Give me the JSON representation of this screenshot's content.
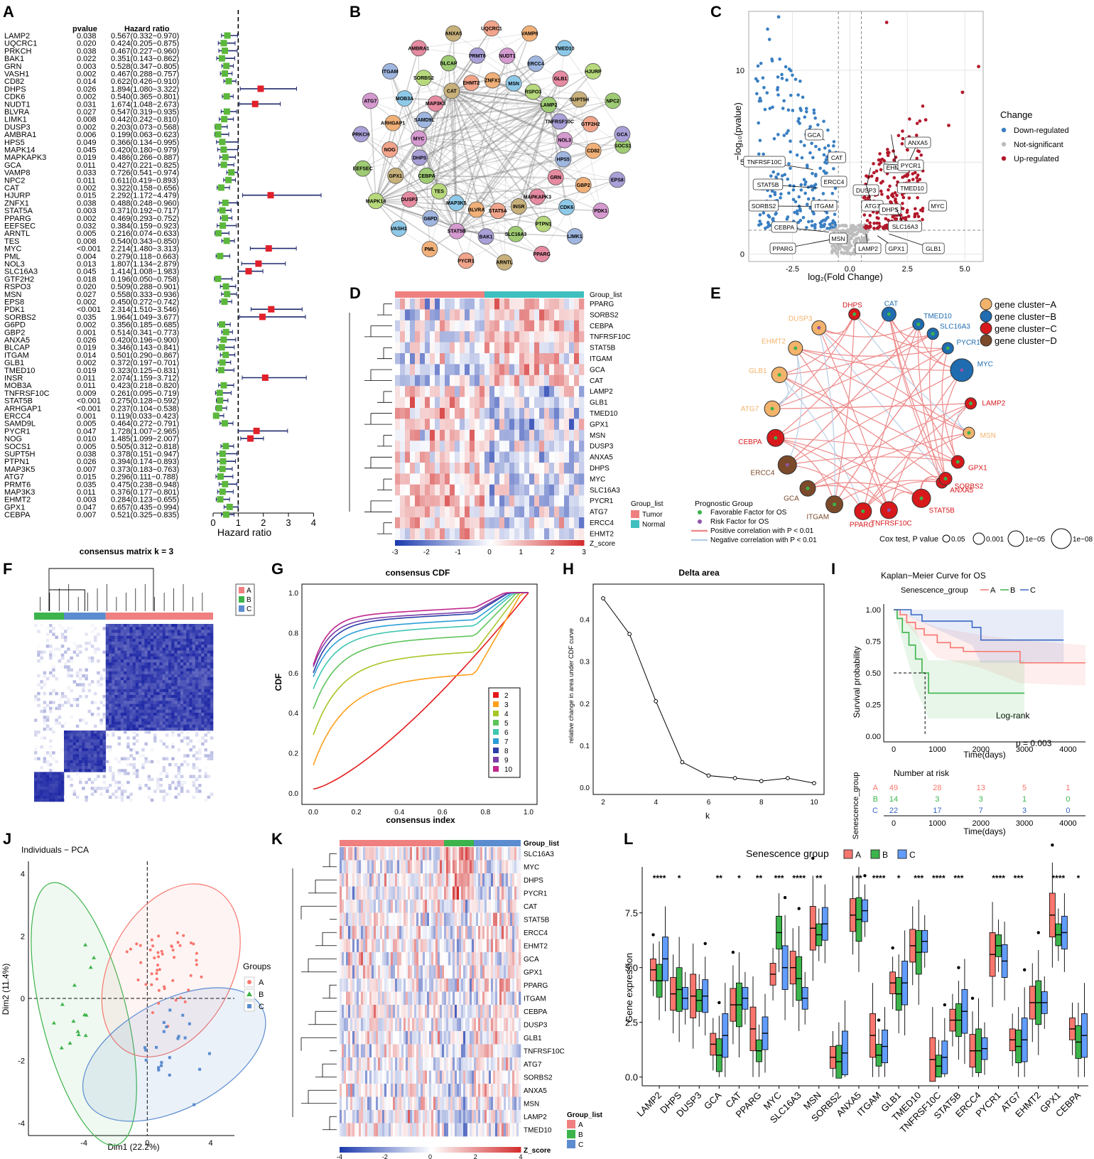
{
  "panel_letters": [
    "A",
    "B",
    "C",
    "D",
    "E",
    "F",
    "G",
    "H",
    "I",
    "J",
    "K",
    "L"
  ],
  "chart_data": [
    {
      "panel": "A",
      "type": "forest",
      "col_pvalue": "pvalue",
      "col_hr": "Hazard ratio",
      "xlabel": "Hazard ratio",
      "xticks": [
        "0",
        "1",
        "2",
        "3",
        "4"
      ],
      "xlim": [
        0,
        4.3
      ],
      "ref_line": 1,
      "genes": [
        "LAMP2",
        "UQCRC1",
        "PRKCH",
        "BAK1",
        "GRN",
        "VASH1",
        "CD82",
        "DHPS",
        "CDK6",
        "NUDT1",
        "BLVRA",
        "LIMK1",
        "DUSP3",
        "AMBRA1",
        "HPS5",
        "MAPK14",
        "MAPKAPK3",
        "GCA",
        "VAMP8",
        "NPC2",
        "CAT",
        "HJURP",
        "ZNFX1",
        "STAT5A",
        "PPARG",
        "EEFSEC",
        "ARNTL",
        "TES",
        "MYC",
        "PML",
        "NOL3",
        "SLC16A3",
        "GTF2H2",
        "RSPO3",
        "MSN",
        "EPS8",
        "PDK1",
        "SORBS2",
        "G6PD",
        "GBP2",
        "ANXA5",
        "BLCAP",
        "ITGAM",
        "GLB1",
        "TMED10",
        "INSR",
        "MOB3A",
        "TNFRSF10C",
        "STAT5B",
        "ARHGAP1",
        "ERCC4",
        "SAMD9L",
        "PYCR1",
        "NOG",
        "SOCS1",
        "SUPT5H",
        "PTPN1",
        "MAP3K5",
        "ATG7",
        "PRMT6",
        "MAP3K3",
        "EHMT2",
        "GPX1",
        "CEBPA"
      ],
      "pvalues": [
        "0.038",
        "0.020",
        "0.038",
        "0.022",
        "0.003",
        "0.002",
        "0.014",
        "0.026",
        "0.002",
        "0.031",
        "0.027",
        "0.008",
        "0.002",
        "0.006",
        "0.049",
        "0.045",
        "0.019",
        "0.011",
        "0.033",
        "0.011",
        "0.002",
        "0.015",
        "0.038",
        "0.003",
        "0.002",
        "0.032",
        "0.005",
        "0.008",
        "<0.001",
        "0.004",
        "0.013",
        "0.045",
        "0.018",
        "0.020",
        "0.027",
        "0.002",
        "<0.001",
        "0.035",
        "0.002",
        "0.001",
        "0.026",
        "0.019",
        "0.014",
        "0.002",
        "0.019",
        "0.011",
        "0.011",
        "0.009",
        "<0.001",
        "<0.001",
        "0.001",
        "0.005",
        "0.047",
        "0.010",
        "0.005",
        "0.038",
        "0.026",
        "0.007",
        "0.015",
        "0.035",
        "0.011",
        "0.003",
        "0.047",
        "0.007"
      ],
      "hr_text": [
        "0.567(0.332−0.970)",
        "0.424(0.205−0.875)",
        "0.467(0.227−0.960)",
        "0.351(0.143−0.862)",
        "0.528(0.347−0.805)",
        "0.467(0.288−0.757)",
        "0.622(0.426−0.910)",
        "1.894(1.080−3.322)",
        "0.540(0.365−0.801)",
        "1.674(1.048−2.673)",
        "0.547(0.319−0.935)",
        "0.442(0.242−0.810)",
        "0.203(0.073−0.568)",
        "0.199(0.063−0.623)",
        "0.366(0.134−0.995)",
        "0.420(0.180−0.979)",
        "0.486(0.266−0.887)",
        "0.427(0.221−0.825)",
        "0.726(0.541−0.974)",
        "0.611(0.419−0.893)",
        "0.322(0.158−0.656)",
        "2.292(1.172−4.479)",
        "0.488(0.248−0.960)",
        "0.371(0.192−0.717)",
        "0.469(0.293−0.752)",
        "0.384(0.159−0.923)",
        "0.216(0.074−0.633)",
        "0.540(0.343−0.850)",
        "2.214(1.480−3.313)",
        "0.279(0.118−0.663)",
        "1.807(1.134−2.879)",
        "1.414(1.008−1.983)",
        "0.196(0.050−0.758)",
        "0.509(0.288−0.901)",
        "0.558(0.333−0.936)",
        "0.450(0.272−0.742)",
        "2.314(1.510−3.546)",
        "1.964(1.049−3.677)",
        "0.356(0.185−0.685)",
        "0.514(0.341−0.773)",
        "0.420(0.196−0.900)",
        "0.346(0.143−0.841)",
        "0.501(0.290−0.867)",
        "0.372(0.197−0.701)",
        "0.323(0.125−0.831)",
        "2.074(1.159−3.712)",
        "0.423(0.218−0.820)",
        "0.261(0.095−0.719)",
        "0.275(0.128−0.592)",
        "0.237(0.104−0.538)",
        "0.119(0.033−0.423)",
        "0.464(0.272−0.791)",
        "1.728(1.007−2.965)",
        "1.485(1.099−2.007)",
        "0.505(0.312−0.818)",
        "0.378(0.151−0.947)",
        "0.394(0.174−0.893)",
        "0.373(0.183−0.763)",
        "0.296(0.111−0.788)",
        "0.475(0.238−0.948)",
        "0.376(0.177−0.801)",
        "0.284(0.123−0.655)",
        "0.657(0.435−0.994)",
        "0.521(0.325−0.835)"
      ],
      "hr": [
        0.567,
        0.424,
        0.467,
        0.351,
        0.528,
        0.467,
        0.622,
        1.894,
        0.54,
        1.674,
        0.547,
        0.442,
        0.203,
        0.199,
        0.366,
        0.42,
        0.486,
        0.427,
        0.726,
        0.611,
        0.322,
        2.292,
        0.488,
        0.371,
        0.469,
        0.384,
        0.216,
        0.54,
        2.214,
        0.279,
        1.807,
        1.414,
        0.196,
        0.509,
        0.558,
        0.45,
        2.314,
        1.964,
        0.356,
        0.514,
        0.42,
        0.346,
        0.501,
        0.372,
        0.323,
        2.074,
        0.423,
        0.261,
        0.275,
        0.237,
        0.119,
        0.464,
        1.728,
        1.485,
        0.505,
        0.378,
        0.394,
        0.373,
        0.296,
        0.475,
        0.376,
        0.284,
        0.657,
        0.521
      ],
      "lo": [
        0.332,
        0.205,
        0.227,
        0.143,
        0.347,
        0.288,
        0.426,
        1.08,
        0.365,
        1.048,
        0.319,
        0.242,
        0.073,
        0.063,
        0.134,
        0.18,
        0.266,
        0.221,
        0.541,
        0.419,
        0.158,
        1.172,
        0.248,
        0.192,
        0.293,
        0.159,
        0.074,
        0.343,
        1.48,
        0.118,
        1.134,
        1.008,
        0.05,
        0.288,
        0.333,
        0.272,
        1.51,
        1.049,
        0.185,
        0.341,
        0.196,
        0.143,
        0.29,
        0.197,
        0.125,
        1.159,
        0.218,
        0.095,
        0.128,
        0.104,
        0.033,
        0.272,
        1.007,
        1.099,
        0.312,
        0.151,
        0.174,
        0.183,
        0.111,
        0.238,
        0.177,
        0.123,
        0.435,
        0.325
      ],
      "hi": [
        0.97,
        0.875,
        0.96,
        0.862,
        0.805,
        0.757,
        0.91,
        3.322,
        0.801,
        2.673,
        0.935,
        0.81,
        0.568,
        0.623,
        0.995,
        0.979,
        0.887,
        0.825,
        0.974,
        0.893,
        0.656,
        4.479,
        0.96,
        0.717,
        0.752,
        0.923,
        0.633,
        0.85,
        3.313,
        0.663,
        2.879,
        1.983,
        0.758,
        0.901,
        0.936,
        0.742,
        3.546,
        3.677,
        0.685,
        0.773,
        0.9,
        0.841,
        0.867,
        0.701,
        0.831,
        3.712,
        0.82,
        0.719,
        0.592,
        0.538,
        0.423,
        0.791,
        2.965,
        2.007,
        0.818,
        0.947,
        0.893,
        0.763,
        0.788,
        0.948,
        0.801,
        0.655,
        0.994,
        0.835
      ]
    },
    {
      "panel": "B",
      "type": "network",
      "nodes": [
        "SOCS1",
        "GBP2",
        "MAPKAPK3",
        "EPS8",
        "CDK6",
        "INSR",
        "PDK1",
        "PTPN1",
        "STAT5A",
        "LIMK1",
        "SLC16A3",
        "BLVRA",
        "PPARG",
        "BAK1",
        "MAP3K5",
        "ARNTL",
        "STAT5B",
        "TES",
        "PYCR1",
        "G6PD",
        "CEBPA",
        "PML",
        "DUSP3",
        "DHPS",
        "VASH1",
        "GPX1",
        "MYC",
        "MAPK14",
        "NOG",
        "SAMD9L",
        "EEFSEC",
        "ARHGAP1",
        "MAP3K3",
        "PRKCH",
        "MOB3A",
        "CAT",
        "ATG7",
        "SORBS2",
        "EHMT2",
        "ITGAM",
        "BLCAP",
        "ZNFX1",
        "AMBRA1",
        "PRMT6",
        "MSN",
        "ANXA5",
        "NUDT1",
        "RSPO3",
        "UQCRC1",
        "ERCC4",
        "LAMP2",
        "VAMP8",
        "GLB1",
        "TNFRSF10C",
        "TMED10",
        "SUPT5H",
        "NOL3",
        "HJURP",
        "GTF2H2",
        "HPS5",
        "NPC2",
        "CD82",
        "GRN",
        "GCA"
      ]
    },
    {
      "panel": "C",
      "type": "scatter",
      "xlabel": "log₂(Fold Change)",
      "ylabel": "−log₁₀(pvalue)",
      "xticks": [
        "-2.5",
        "0.0",
        "2.5",
        "5.0"
      ],
      "yticks": [
        "0",
        "5",
        "10"
      ],
      "xlim": [
        -4.4,
        5.8
      ],
      "ylim": [
        -0.4,
        13.2
      ],
      "legend_title": "Change",
      "legend": [
        "Down-regulated",
        "Not-significant",
        "Up-regulated"
      ],
      "colors": [
        "#3a7fc2",
        "#bdbdbd",
        "#b2182b"
      ],
      "labels": [
        "GCA",
        "TNFRSF10C",
        "CAT",
        "STAT5B",
        "ERCC4",
        "SORBS2",
        "ITGAM",
        "DUSP3",
        "ATG7",
        "EHMT2",
        "ANXA5",
        "PYCR1",
        "TMED10",
        "MYC",
        "DHPS",
        "SLC16A3",
        "CEBPA",
        "PPARG",
        "MSN",
        "LAMP2",
        "GPX1",
        "GLB1"
      ]
    },
    {
      "panel": "D",
      "type": "heatmap",
      "group_label": "Group_list",
      "legend_title": "Group_list",
      "legend": [
        "Tumor",
        "Normal"
      ],
      "colorbar_label": "Z_score",
      "colorbar_ticks": [
        "-3",
        "-2",
        "-1",
        "0",
        "1",
        "2",
        "3"
      ],
      "rows": [
        "PPARG",
        "SORBS2",
        "CEBPA",
        "TNFRSF10C",
        "STAT5B",
        "ITGAM",
        "GCA",
        "CAT",
        "LAMP2",
        "GLB1",
        "TMED10",
        "GPX1",
        "MSN",
        "DUSP3",
        "ANXA5",
        "DHPS",
        "MYC",
        "SLC16A3",
        "PYCR1",
        "ATG7",
        "ERCC4",
        "EHMT2"
      ]
    },
    {
      "panel": "E",
      "type": "network",
      "nodes": [
        "DHPS",
        "CAT",
        "TMED10",
        "DUSP3",
        "SLC16A3",
        "EHMT2",
        "PYCR1",
        "GLB1",
        "MYC",
        "ATG7",
        "LAMP2",
        "CEBPA",
        "MSN",
        "ERCC4",
        "GPX1",
        "GCA",
        "ANXA5",
        "ITGAM",
        "TNFRSF10C",
        "PPARG",
        "STAT5B",
        "SORBS2"
      ],
      "cluster_legend": [
        "gene cluster−A",
        "gene cluster−B",
        "gene cluster−C",
        "gene cluster−D"
      ],
      "cluster_colors": [
        "#f3b36b",
        "#1f6cb0",
        "#d7191c",
        "#7b4a2a"
      ],
      "prog_title": "Prognostic Group",
      "prog_items": [
        "Favorable Factor for OS",
        "Risk Factor for OS",
        "Positive correlation with P < 0.01",
        "Negative correlation with P < 0.01"
      ],
      "cox_title": "Cox test, P value",
      "cox_items": [
        "0.05",
        "0.001",
        "1e−05",
        "1e−08"
      ]
    },
    {
      "panel": "F",
      "type": "heatmap",
      "title": "consensus matrix k = 3",
      "legend": [
        "A",
        "B",
        "C"
      ],
      "colors": [
        "#f08080",
        "#3cb44b",
        "#5b8ccf"
      ]
    },
    {
      "panel": "G",
      "type": "line",
      "title": "consensus CDF",
      "xlabel": "consensus index",
      "ylabel": "CDF",
      "xticks": [
        "0.0",
        "0.2",
        "0.4",
        "0.6",
        "0.8",
        "1.0"
      ],
      "yticks": [
        "0.0",
        "0.2",
        "0.4",
        "0.6",
        "0.8",
        "1.0"
      ],
      "legend": [
        "2",
        "3",
        "4",
        "5",
        "6",
        "7",
        "8",
        "9",
        "10"
      ],
      "colors": [
        "#e41a1c",
        "#ff9f1c",
        "#a6c626",
        "#5ec45a",
        "#3fc6b0",
        "#2b9ed6",
        "#2d3fa8",
        "#7a3fa8",
        "#c0268c"
      ]
    },
    {
      "panel": "H",
      "type": "line",
      "title": "Delta area",
      "xlabel": "k",
      "ylabel": "relative change in area under CDF curve",
      "x": [
        2,
        3,
        4,
        5,
        6,
        7,
        8,
        9,
        10
      ],
      "y": [
        0.45,
        0.365,
        0.205,
        0.06,
        0.028,
        0.022,
        0.015,
        0.022,
        0.01
      ],
      "xticks": [
        "2",
        "4",
        "6",
        "8",
        "10"
      ],
      "yticks": [
        "0.0",
        "0.1",
        "0.2",
        "0.3",
        "0.4"
      ]
    },
    {
      "panel": "I",
      "type": "line",
      "title": "Kaplan−Meier Curve for OS",
      "legend_title": "Senescence_group",
      "legend": [
        "A",
        "B",
        "C"
      ],
      "colors": [
        "#f8766d",
        "#3cb44b",
        "#3a66c4"
      ],
      "xlabel": "Time(days)",
      "ylabel": "Survival probability",
      "xticks": [
        "0",
        "1000",
        "2000",
        "3000",
        "4000"
      ],
      "yticks": [
        "0.00",
        "0.25",
        "0.50",
        "0.75",
        "1.00"
      ],
      "logrank": "Log-rank",
      "pvalue": "p = 0.003",
      "risk_title": "Number at risk",
      "risk_ylabel": "Senescence_group",
      "risk_table": [
        [
          "49",
          "28",
          "13",
          "5",
          "1"
        ],
        [
          "14",
          "3",
          "3",
          "1",
          "0"
        ],
        [
          "22",
          "17",
          "7",
          "3",
          "0"
        ]
      ]
    },
    {
      "panel": "J",
      "type": "scatter",
      "title": "Individuals − PCA",
      "xlabel": "Dim1 (22.2%)",
      "ylabel": "Dim2 (11.4%)",
      "xticks": [
        "-4",
        "0",
        "4"
      ],
      "yticks": [
        "-4",
        "-2",
        "0",
        "2",
        "4"
      ],
      "legend_title": "Groups",
      "legend": [
        "A",
        "B",
        "C"
      ],
      "colors": [
        "#f8766d",
        "#3cb44b",
        "#5b8ccf"
      ]
    },
    {
      "panel": "K",
      "type": "heatmap",
      "group_label": "Group_list",
      "legend_title": "Group_list",
      "legend": [
        "A",
        "B",
        "C"
      ],
      "colorbar_label": "Z_score",
      "colorbar_ticks": [
        "-4",
        "-2",
        "0",
        "2",
        "4"
      ],
      "rows": [
        "SLC16A3",
        "MYC",
        "DHPS",
        "PYCR1",
        "CAT",
        "STAT5B",
        "ERCC4",
        "EHMT2",
        "GCA",
        "GPX1",
        "PPARG",
        "ITGAM",
        "CEBPA",
        "DUSP3",
        "GLB1",
        "TNFRSF10C",
        "ATG7",
        "SORBS2",
        "ANXA5",
        "MSN",
        "LAMP2",
        "TMED10"
      ]
    },
    {
      "panel": "L",
      "type": "box",
      "legend_title": "Senescence group",
      "legend": [
        "A",
        "B",
        "C"
      ],
      "colors": [
        "#f8766d",
        "#3cb44b",
        "#619cff"
      ],
      "ylabel": "Gene expression",
      "yticks": [
        "0.0",
        "2.5",
        "5.0",
        "7.5"
      ],
      "ylim": [
        -0.4,
        9.6
      ],
      "categories": [
        "LAMP2",
        "DHPS",
        "DUSP3",
        "GCA",
        "CAT",
        "PPARG",
        "MYC",
        "SLC16A3",
        "MSN",
        "SORBS2",
        "ANXA5",
        "ITGAM",
        "GLB1",
        "TMED10",
        "TNFRSF10C",
        "STAT5B",
        "ERCC4",
        "PYCR1",
        "ATG7",
        "EHMT2",
        "GPX1",
        "CEBPA"
      ],
      "signif": [
        "****",
        "*",
        "",
        "**",
        "*",
        "**",
        "***",
        "****",
        "**",
        "",
        "**",
        "****",
        "*",
        "***",
        "****",
        "***",
        "",
        "****",
        "***",
        "",
        "****",
        "*"
      ],
      "medians": [
        [
          4.9,
          4.4,
          5.4
        ],
        [
          3.8,
          4.0,
          3.6
        ],
        [
          3.7,
          3.5,
          3.7
        ],
        [
          1.5,
          1.0,
          1.9
        ],
        [
          3.3,
          3.3,
          3.6
        ],
        [
          2.2,
          1.2,
          2.0
        ],
        [
          4.7,
          6.6,
          5.0
        ],
        [
          5.0,
          4.5,
          3.6
        ],
        [
          6.8,
          6.5,
          7.0
        ],
        [
          0.9,
          0.7,
          1.1
        ],
        [
          7.4,
          7.2,
          7.6
        ],
        [
          1.9,
          1.0,
          1.4
        ],
        [
          4.3,
          3.8,
          4.3
        ],
        [
          6.0,
          5.7,
          6.2
        ],
        [
          0.8,
          0.5,
          0.9
        ],
        [
          2.6,
          2.6,
          3.0
        ],
        [
          1.2,
          1.2,
          1.3
        ],
        [
          5.6,
          6.0,
          5.3
        ],
        [
          1.7,
          1.4,
          1.7
        ],
        [
          3.4,
          3.4,
          3.4
        ],
        [
          7.4,
          6.5,
          6.6
        ],
        [
          2.2,
          1.6,
          1.9
        ]
      ]
    }
  ]
}
